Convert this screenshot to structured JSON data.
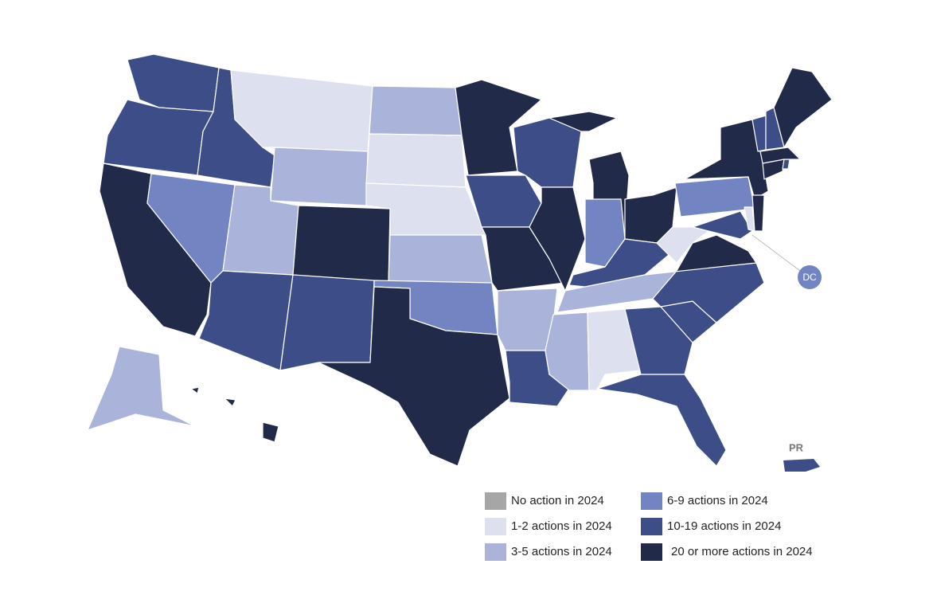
{
  "legend": [
    {
      "label": "No action in 2024",
      "color": "#a6a6a6"
    },
    {
      "label": "1-2 actions in 2024",
      "color": "#dde1ef"
    },
    {
      "label": "3-5 actions in 2024",
      "color": "#aab3d9"
    },
    {
      "label": "6-9 actions in 2024",
      "color": "#7384c3"
    },
    {
      "label": "10-19 actions in 2024",
      "color": "#3c4d87"
    },
    {
      "label": "20 or more actions in 2024",
      "color": "#222a4a"
    }
  ],
  "regions": [
    4,
    4,
    5,
    4,
    3,
    1,
    2,
    2,
    4,
    5,
    4,
    2,
    1,
    1,
    2,
    3,
    5,
    5,
    4,
    5,
    2,
    4,
    4,
    5,
    5,
    3,
    5,
    4,
    2,
    2,
    1,
    4,
    4,
    4,
    4,
    5,
    1,
    3,
    5,
    4,
    1,
    5,
    5,
    4,
    5,
    4,
    4,
    5,
    2,
    5
  ],
  "markers": [
    {
      "label": "DC",
      "level": 3
    },
    {
      "label": "PR",
      "level": 4
    }
  ]
}
